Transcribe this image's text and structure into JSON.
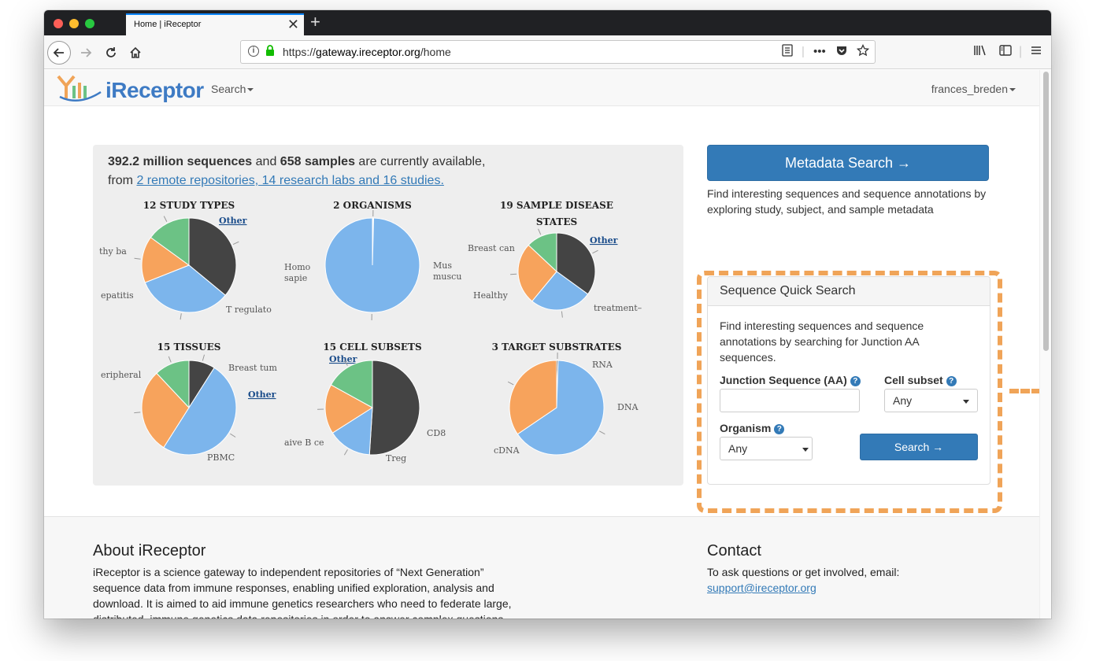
{
  "browser": {
    "tab_title": "Home | iReceptor",
    "tab_close": "✕",
    "new_tab": "+",
    "url_scheme": "https://",
    "url_host": "gateway.ireceptor.org",
    "url_path": "/home"
  },
  "site_nav": {
    "logo_text": "iReceptor",
    "search_label": "Search",
    "user_label": "frances_breden"
  },
  "stats": {
    "seq_count": "392.2 million sequences",
    "and": " and ",
    "sample_count": "658 samples",
    "available": " are currently available,",
    "from": "from ",
    "sources_link": "2 remote repositories, 14 research labs and 16 studies."
  },
  "chart_data": [
    {
      "type": "pie",
      "title": "12 STUDY TYPES",
      "slices": [
        {
          "label": "Other",
          "value": 36,
          "color": "#444444"
        },
        {
          "label": "T regulato",
          "value": 33,
          "color": "#7cb5ec"
        },
        {
          "label": "epatitis",
          "value": 16,
          "color": "#f7a35c"
        },
        {
          "label": "thy ba",
          "value": 15,
          "color": "#6cc285"
        }
      ]
    },
    {
      "type": "pie",
      "title": "2 ORGANISMS",
      "slices": [
        {
          "label": "Mus muscu",
          "value": 0.4,
          "color": "#ffffff"
        },
        {
          "label": "Homo sapie",
          "value": 99.6,
          "color": "#7cb5ec"
        }
      ]
    },
    {
      "type": "pie",
      "title": "19 SAMPLE DISEASE STATES",
      "slices": [
        {
          "label": "Other",
          "value": 35,
          "color": "#444444"
        },
        {
          "label": "treatment–",
          "value": 26,
          "color": "#7cb5ec"
        },
        {
          "label": "Healthy",
          "value": 26,
          "color": "#f7a35c"
        },
        {
          "label": "Breast can",
          "value": 13,
          "color": "#6cc285"
        }
      ]
    },
    {
      "type": "pie",
      "title": "15 TISSUES",
      "slices": [
        {
          "label": "Other",
          "value": 9,
          "color": "#444444"
        },
        {
          "label": "PBMC",
          "value": 50,
          "color": "#7cb5ec"
        },
        {
          "label": "eripheral",
          "value": 29,
          "color": "#f7a35c"
        },
        {
          "label": "Breast tum",
          "value": 12,
          "color": "#6cc285"
        }
      ]
    },
    {
      "type": "pie",
      "title": "15 CELL SUBSETS",
      "slices": [
        {
          "label": "Other",
          "value": 51,
          "color": "#444444"
        },
        {
          "label": "CD8",
          "value": 15,
          "color": "#7cb5ec"
        },
        {
          "label": "Treg",
          "value": 17,
          "color": "#f7a35c"
        },
        {
          "label": "aive B ce",
          "value": 17,
          "color": "#6cc285"
        }
      ]
    },
    {
      "type": "pie",
      "title": "3 TARGET SUBSTRATES",
      "slices": [
        {
          "label": "DNA",
          "value": 0.5,
          "color": "#444444"
        },
        {
          "label": "cDNA",
          "value": 65,
          "color": "#7cb5ec"
        },
        {
          "label": "RNA",
          "value": 34.5,
          "color": "#f7a35c"
        }
      ]
    }
  ],
  "metadata_search": {
    "button_label": "Metadata Search →",
    "description": "Find interesting sequences and sequence annotations by exploring study, subject, and sample metadata"
  },
  "quick_search": {
    "title": "Sequence Quick Search",
    "description": "Find interesting sequences and sequence annotations by searching for Junction AA sequences.",
    "junction_label": "Junction Sequence (AA)",
    "junction_value": "",
    "cell_subset_label": "Cell subset",
    "cell_subset_value": "Any",
    "organism_label": "Organism",
    "organism_value": "Any",
    "help": "?",
    "search_button": "Search →"
  },
  "footer": {
    "about_title": "About iReceptor",
    "about_text": "iReceptor is a science gateway to independent repositories of “Next Generation” sequence data from immune responses, enabling unified exploration, analysis and download. It is aimed to aid immune genetics researchers who need to federate large, distributed, immune genetics data repositories in order to answer complex questions",
    "contact_title": "Contact",
    "contact_text": "To ask questions or get involved, email:",
    "contact_email": "support@ireceptor.org"
  },
  "colors": {
    "accent": "#337ab7",
    "highlight_frame": "#f0a458"
  }
}
